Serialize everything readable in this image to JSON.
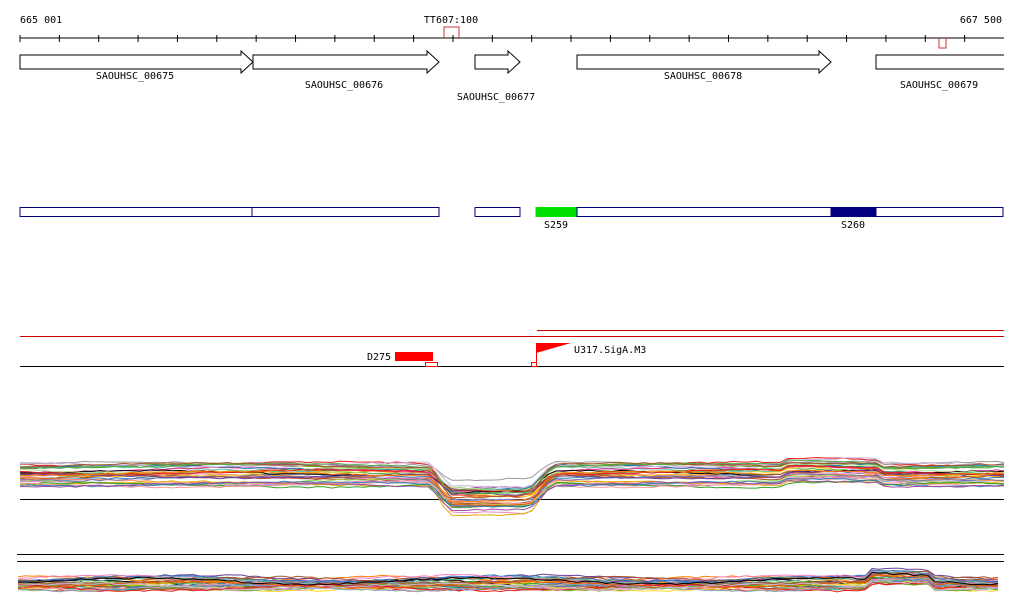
{
  "ruler": {
    "start_label": "665 001",
    "end_label": "667 500",
    "terminator_label": "TT607:100"
  },
  "genes": [
    {
      "id": "SAOUHSC_00675",
      "label": "SAOUHSC_00675"
    },
    {
      "id": "SAOUHSC_00676",
      "label": "SAOUHSC_00676"
    },
    {
      "id": "SAOUHSC_00677",
      "label": "SAOUHSC_00677"
    },
    {
      "id": "SAOUHSC_00678",
      "label": "SAOUHSC_00678"
    },
    {
      "id": "SAOUHSC_00679",
      "label": "SAOUHSC_00679"
    }
  ],
  "segments": [
    {
      "id": "S259",
      "label": "S259",
      "color": "#00e000"
    },
    {
      "id": "S260",
      "label": "S260",
      "color": "#000080"
    }
  ],
  "features": {
    "downshift_label": "D275",
    "upshift_label": "U317.SigA.M3",
    "feature_color": "#ff0000"
  },
  "colors": {
    "gene_outline": "#000000",
    "segment_outline": "#000080",
    "feature_line": "#cc0000",
    "terminator": "#cc3333"
  }
}
